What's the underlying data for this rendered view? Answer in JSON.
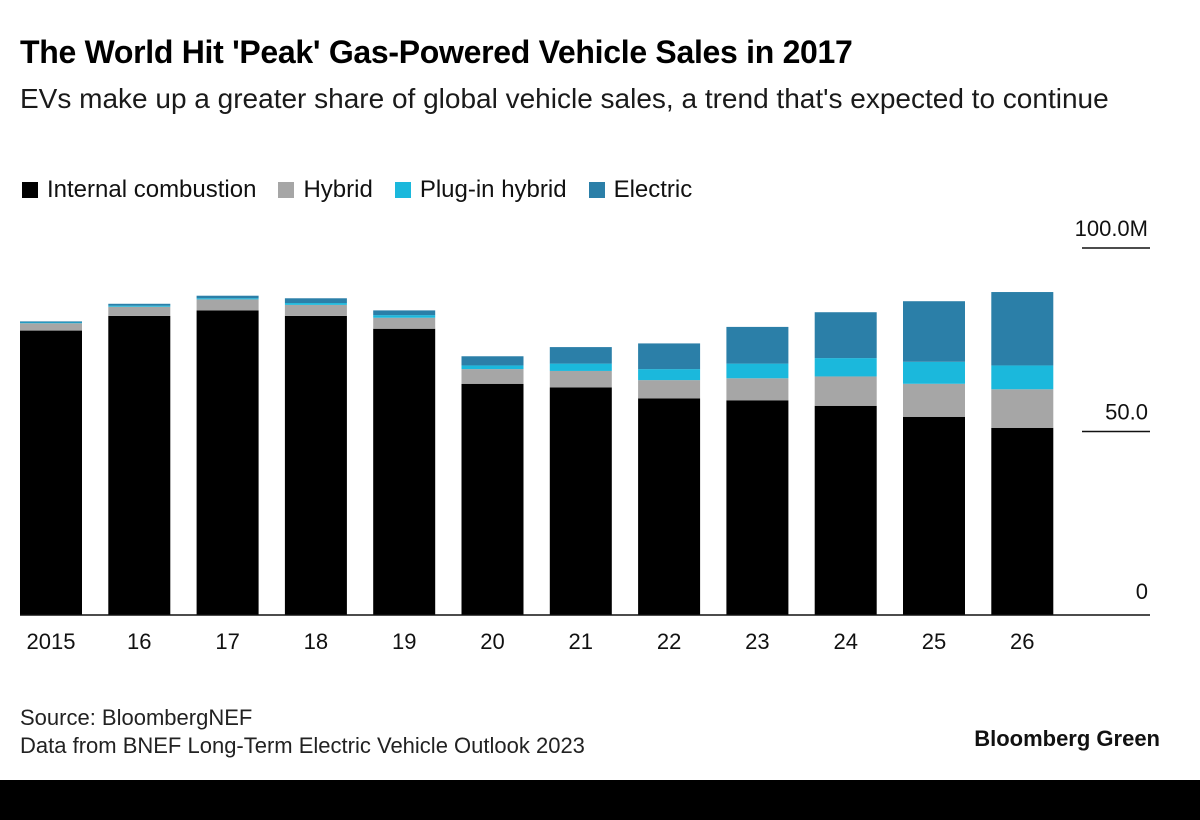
{
  "chart_data": {
    "type": "stacked-bar",
    "title": "The World Hit 'Peak' Gas-Powered Vehicle Sales in 2017",
    "subtitle": "EVs make up a greater share of global vehicle sales, a trend that's expected to continue",
    "categories": [
      "2015",
      "16",
      "17",
      "18",
      "19",
      "20",
      "21",
      "22",
      "23",
      "24",
      "25",
      "26"
    ],
    "series": [
      {
        "name": "Internal combustion",
        "color": "#000000",
        "values": [
          77.5,
          81.5,
          83.0,
          81.5,
          78.0,
          63.0,
          62.0,
          59.0,
          58.5,
          57.0,
          54.0,
          51.0
        ]
      },
      {
        "name": "Hybrid",
        "color": "#a6a6a6",
        "values": [
          2.0,
          2.5,
          3.0,
          3.0,
          3.0,
          4.0,
          4.5,
          5.0,
          6.0,
          8.0,
          9.0,
          10.5
        ]
      },
      {
        "name": "Plug-in hybrid",
        "color": "#1bb8dc",
        "values": [
          0.2,
          0.3,
          0.3,
          0.5,
          0.7,
          1.0,
          2.0,
          3.0,
          4.0,
          5.0,
          6.0,
          6.5
        ]
      },
      {
        "name": "Electric",
        "color": "#2b7fa8",
        "values": [
          0.3,
          0.5,
          0.7,
          1.3,
          1.3,
          2.5,
          4.5,
          7.0,
          10.0,
          12.5,
          16.5,
          20.0
        ]
      }
    ],
    "y_ticks": [
      {
        "value": 100,
        "label": "100.0M"
      },
      {
        "value": 50,
        "label": "50.0"
      },
      {
        "value": 0,
        "label": "0"
      }
    ],
    "ylim": [
      0,
      100
    ],
    "legend_position": "top-left"
  },
  "legend": [
    {
      "label": "Internal combustion",
      "color": "#000000"
    },
    {
      "label": "Hybrid",
      "color": "#a6a6a6"
    },
    {
      "label": "Plug-in hybrid",
      "color": "#1bb8dc"
    },
    {
      "label": "Electric",
      "color": "#2b7fa8"
    }
  ],
  "footer": {
    "source": "Source: BloombergNEF",
    "note": "Data from BNEF Long-Term Electric Vehicle Outlook 2023",
    "brand": "Bloomberg Green"
  }
}
